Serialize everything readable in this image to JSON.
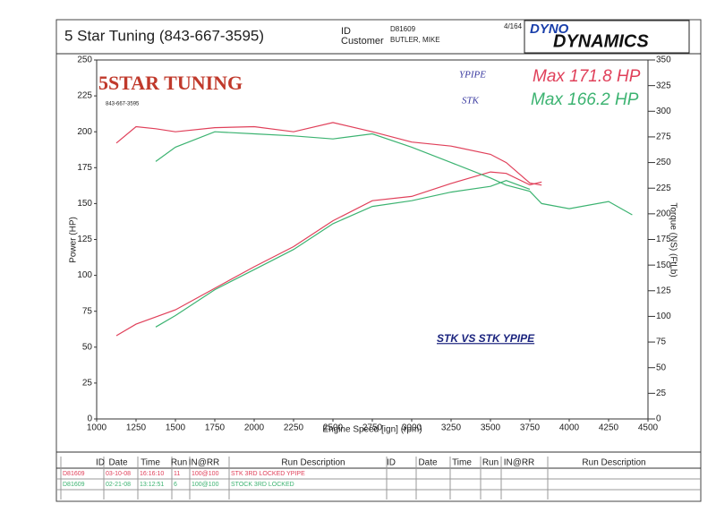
{
  "header": {
    "title": "5 Star Tuning (843-667-3595)",
    "id_label": "ID",
    "id": "D81609",
    "customer_label": "Customer",
    "customer": "BUTLER, MIKE",
    "page": "4/164",
    "logo_top": "DYNO",
    "logo_bottom": "DYNAMICS"
  },
  "chart_data": {
    "type": "line",
    "logo": "5STAR TUNING",
    "logo_phone": "843-667-3595",
    "xlabel": "Engine Speed [ign] (rpm)",
    "ylabel": "Power (HP)",
    "y2label": "Torque (NS) (FtLb)",
    "annotations": [
      "YPIPE",
      "STK",
      "Max 171.8 HP",
      "Max 166.2 HP",
      "STK  VS  STK  YPIPE"
    ],
    "x": [
      1125,
      1250,
      1375,
      1500,
      1750,
      2000,
      2250,
      2500,
      2750,
      3000,
      3250,
      3500,
      3600,
      3750,
      3825,
      4000,
      4250,
      4400
    ],
    "series": [
      {
        "color": "#e0405a",
        "values": [
          58,
          66,
          71,
          76,
          91,
          106,
          120,
          138,
          152,
          155,
          164,
          172,
          171,
          163,
          165,
          null,
          null,
          null
        ]
      },
      {
        "color": "#3cb371",
        "values": [
          null,
          null,
          64,
          72,
          90,
          104,
          118,
          136,
          148,
          152,
          158,
          162,
          166,
          160,
          null,
          null,
          null,
          null
        ]
      },
      {
        "color": "#e0405a",
        "axis": "y2",
        "values": [
          269,
          285,
          283,
          280,
          284,
          285,
          280,
          289,
          280,
          270,
          266,
          258,
          250,
          230,
          228,
          null,
          null,
          null
        ]
      },
      {
        "color": "#3cb371",
        "axis": "y2",
        "values": [
          null,
          null,
          251,
          265,
          280,
          278,
          276,
          273,
          278,
          265,
          250,
          235,
          228,
          222,
          210,
          205,
          212,
          199
        ]
      }
    ],
    "xlim": [
      1000,
      4500
    ],
    "xticks": [
      1000,
      1250,
      1500,
      1750,
      2000,
      2250,
      2500,
      2750,
      3000,
      3250,
      3500,
      3750,
      4000,
      4250,
      4500
    ],
    "ylim": [
      0,
      250
    ],
    "yticks": [
      0,
      25,
      50,
      75,
      100,
      125,
      150,
      175,
      200,
      225,
      250
    ],
    "y2lim": [
      0,
      350
    ],
    "y2ticks": [
      0,
      25,
      50,
      75,
      100,
      125,
      150,
      175,
      200,
      225,
      250,
      275,
      300,
      325,
      350
    ],
    "grid": false
  },
  "table": {
    "header": [
      "ID",
      "Date",
      "Time",
      "Run",
      "IN@RR",
      "Run Description",
      "ID",
      "Date",
      "Time",
      "Run",
      "IN@RR",
      "Run Description"
    ],
    "rows": [
      [
        "D81609",
        "03-10-08",
        "16:16:10",
        "11",
        "100@100",
        "STK 3RD LOCKED YPIPE"
      ],
      [
        "D81609",
        "02-21-08",
        "13:12:51",
        "6",
        "100@100",
        "STOCK 3RD LOCKED"
      ]
    ]
  }
}
